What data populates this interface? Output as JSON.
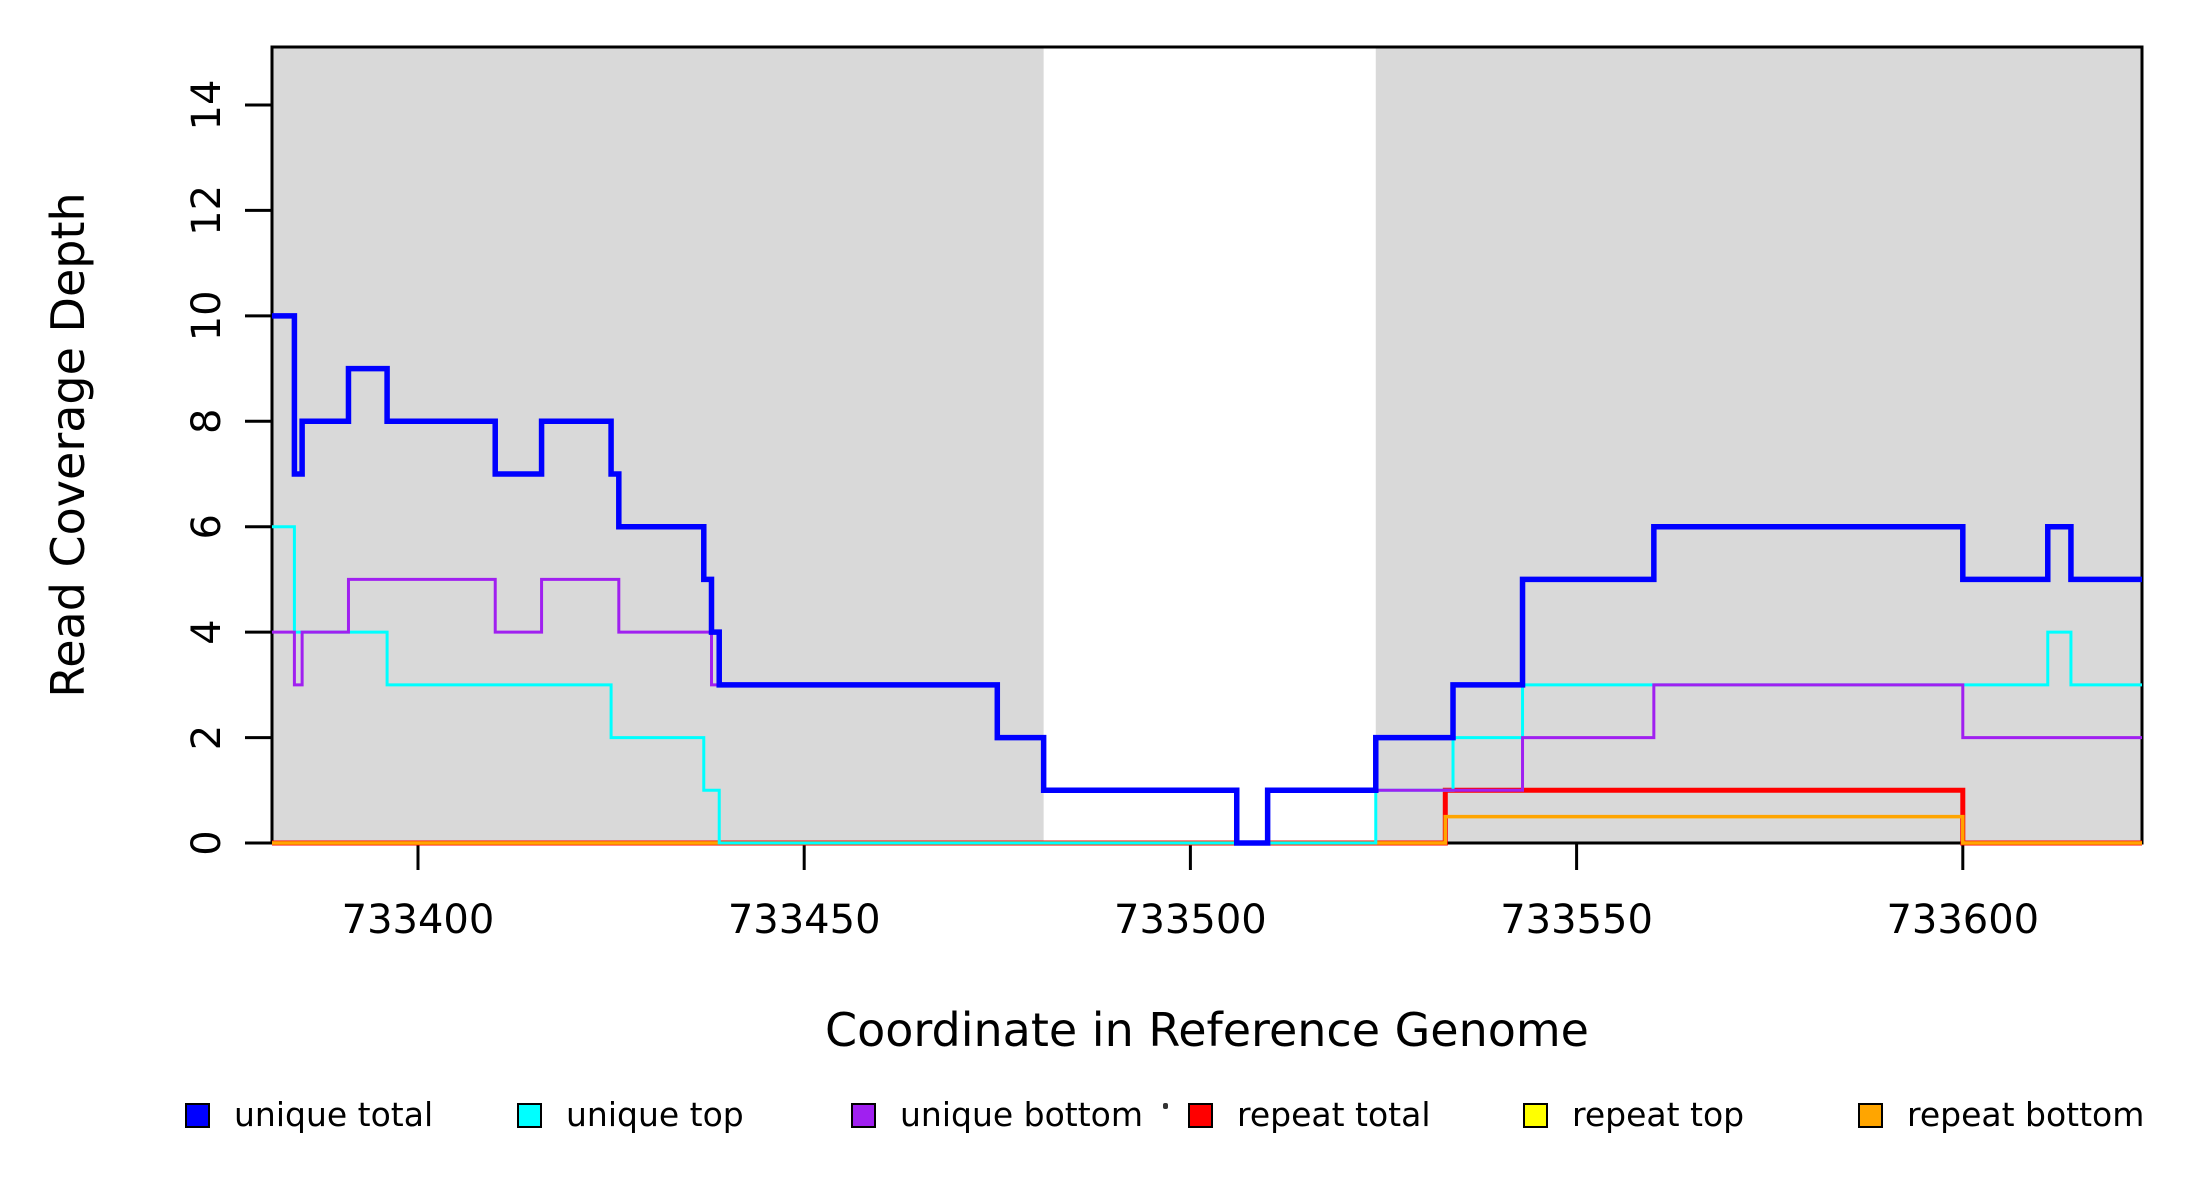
{
  "figure": {
    "background": "#ffffff"
  },
  "chart_data": {
    "type": "line",
    "step": true,
    "title": "",
    "xlabel": "Coordinate in Reference Genome",
    "ylabel": "Read Coverage Depth",
    "xlim": [
      733381.1,
      733623.2
    ],
    "ylim": [
      0,
      15.1
    ],
    "x_ticks": [
      733400,
      733450,
      733500,
      733550,
      733600
    ],
    "y_ticks": [
      0,
      2,
      4,
      6,
      8,
      10,
      12,
      14
    ],
    "grid": false,
    "legend_position": "bottom",
    "shade_color": "#d9d9d9",
    "shaded_regions": [
      {
        "x0": 733381.1,
        "x1": 733481
      },
      {
        "x0": 733524,
        "x1": 733623.2
      }
    ],
    "axis_color": "#000000",
    "series": [
      {
        "name": "unique-total",
        "label": "unique total",
        "color": "#0000ff",
        "line_width": 5.5,
        "steps": [
          [
            733381.1,
            10
          ],
          [
            733384,
            7
          ],
          [
            733385,
            8
          ],
          [
            733391,
            9
          ],
          [
            733396,
            8
          ],
          [
            733410,
            7
          ],
          [
            733416,
            8
          ],
          [
            733425,
            7
          ],
          [
            733426,
            6
          ],
          [
            733437,
            5
          ],
          [
            733438,
            4
          ],
          [
            733439,
            3
          ],
          [
            733475,
            2
          ],
          [
            733481,
            1
          ],
          [
            733506,
            0
          ],
          [
            733510,
            1
          ],
          [
            733524,
            2
          ],
          [
            733534,
            3
          ],
          [
            733543,
            5
          ],
          [
            733560,
            6
          ],
          [
            733600,
            5
          ],
          [
            733611,
            6
          ],
          [
            733614,
            5
          ]
        ]
      },
      {
        "name": "unique-top",
        "label": "unique top",
        "color": "#00ffff",
        "line_width": 3,
        "steps": [
          [
            733381.1,
            6
          ],
          [
            733384,
            4
          ],
          [
            733396,
            3
          ],
          [
            733425,
            2
          ],
          [
            733437,
            1
          ],
          [
            733439,
            0
          ],
          [
            733524,
            1
          ],
          [
            733534,
            2
          ],
          [
            733543,
            3
          ],
          [
            733611,
            4
          ],
          [
            733614,
            3
          ]
        ]
      },
      {
        "name": "unique-bottom",
        "label": "unique bottom",
        "color": "#a020f0",
        "line_width": 3,
        "steps": [
          [
            733381.1,
            4
          ],
          [
            733384,
            3
          ],
          [
            733385,
            4
          ],
          [
            733391,
            5
          ],
          [
            733410,
            4
          ],
          [
            733416,
            5
          ],
          [
            733426,
            4
          ],
          [
            733438,
            3
          ],
          [
            733475,
            2
          ],
          [
            733481,
            1
          ],
          [
            733506,
            0
          ],
          [
            733510,
            1
          ],
          [
            733543,
            2
          ],
          [
            733560,
            3
          ],
          [
            733600,
            2
          ]
        ]
      },
      {
        "name": "repeat-total",
        "label": "repeat total",
        "color": "#ff0000",
        "line_width": 5,
        "steps": [
          [
            733381.1,
            0
          ],
          [
            733533,
            1
          ],
          [
            733600,
            0
          ]
        ]
      },
      {
        "name": "repeat-top",
        "label": "repeat top",
        "color": "#ffff00",
        "line_width": 3,
        "steps": [
          [
            733381.1,
            0
          ],
          [
            733533,
            0.5
          ],
          [
            733600,
            0
          ]
        ]
      },
      {
        "name": "repeat-bottom",
        "label": "repeat bottom",
        "color": "#ffa500",
        "line_width": 3.5,
        "steps": [
          [
            733381.1,
            0
          ],
          [
            733533,
            0.5
          ],
          [
            733600,
            0
          ]
        ]
      }
    ],
    "draw_order": [
      "repeat-total",
      "repeat-top",
      "repeat-bottom",
      "unique-top",
      "unique-bottom",
      "unique-total"
    ]
  },
  "legend": {
    "items": [
      {
        "label": "unique total",
        "color": "#0000ff"
      },
      {
        "label": "unique top",
        "color": "#00ffff"
      },
      {
        "label": "unique bottom",
        "color": "#a020f0"
      },
      {
        "label": "repeat total",
        "color": "#ff0000"
      },
      {
        "label": "repeat top",
        "color": "#ffff00"
      },
      {
        "label": "repeat bottom",
        "color": "#ffa500"
      }
    ]
  }
}
